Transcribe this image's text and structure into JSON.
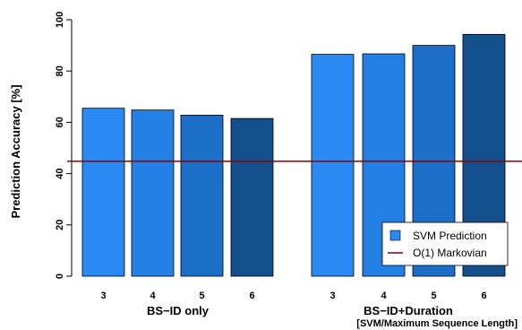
{
  "chart_data": {
    "type": "bar",
    "ylabel": "Prediction Accuracy [%]",
    "ylim": [
      0,
      100
    ],
    "yticks": [
      0,
      20,
      40,
      60,
      80,
      100
    ],
    "grid": false,
    "legend_position": "bottom-right",
    "groups": [
      {
        "label": "BS−ID only",
        "categories": [
          "3",
          "4",
          "5",
          "6"
        ],
        "values": [
          65.5,
          64.8,
          62.8,
          61.5
        ],
        "colors": [
          "#2a8af5",
          "#2580e6",
          "#1c6ec8",
          "#124f8c"
        ]
      },
      {
        "label": "BS−ID+Duration",
        "categories": [
          "3",
          "4",
          "5",
          "6"
        ],
        "values": [
          86.5,
          86.7,
          90.0,
          94.3
        ],
        "colors": [
          "#2a8af5",
          "#2580e6",
          "#1c6ec8",
          "#124f8c"
        ]
      }
    ],
    "xlabel_note": "[SVM/Maximum Sequence Length]",
    "reference_line": {
      "name": "O(1) Markovian",
      "value": 44.8,
      "color": "#8b0000"
    },
    "legend": [
      {
        "label": "SVM Prediction",
        "kind": "box",
        "color": "#2a8af5"
      },
      {
        "label": "O(1) Markovian",
        "kind": "line",
        "color": "#8b0000"
      }
    ]
  }
}
